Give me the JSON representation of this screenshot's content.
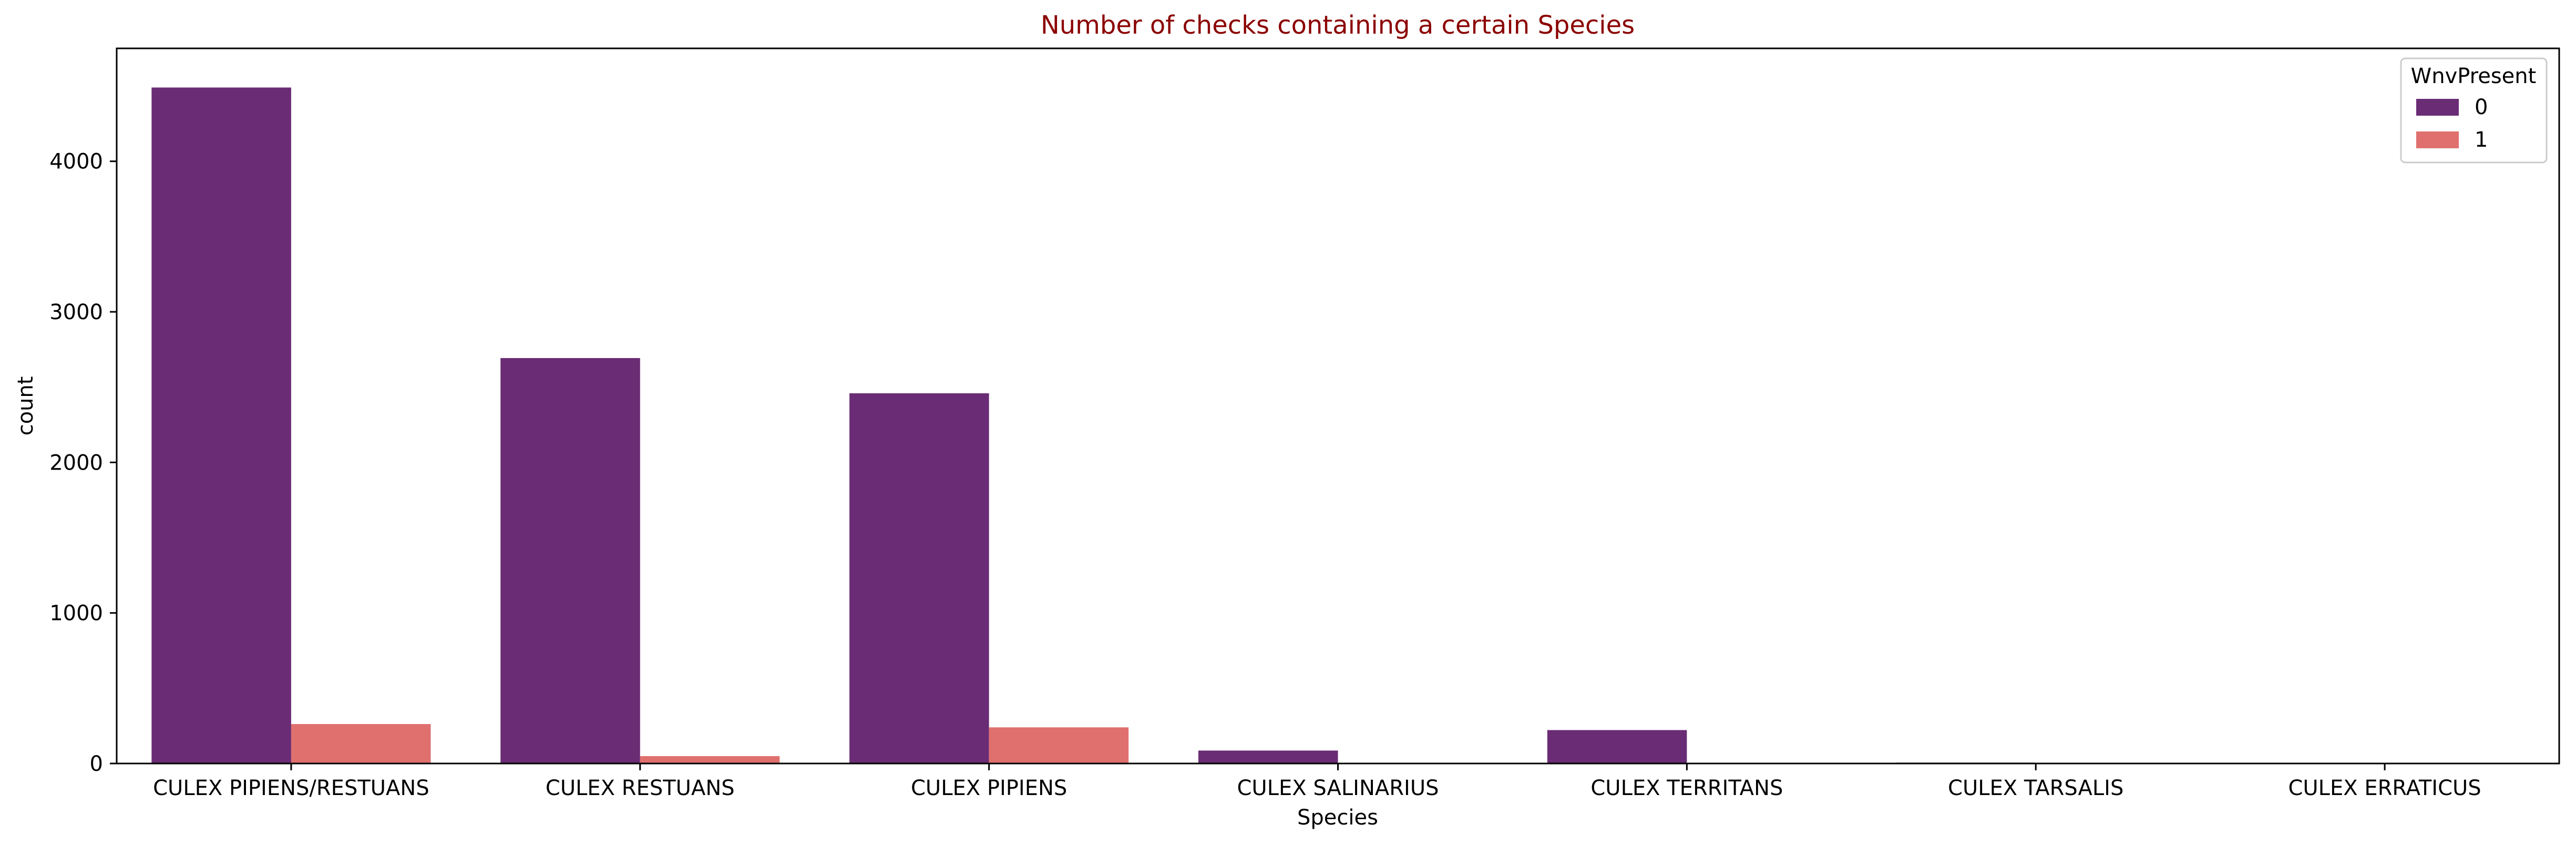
{
  "chart_data": {
    "type": "bar",
    "title": "Number of checks containing a certain Species",
    "title_color": "#8b0000",
    "xlabel": "Species",
    "ylabel": "count",
    "categories": [
      "CULEX PIPIENS/RESTUANS",
      "CULEX RESTUANS",
      "CULEX PIPIENS",
      "CULEX SALINARIUS",
      "CULEX TERRITANS",
      "CULEX TARSALIS",
      "CULEX ERRATICUS"
    ],
    "series": [
      {
        "name": "0",
        "color": "#6a2c75",
        "values": [
          4490,
          2693,
          2459,
          86,
          222,
          6,
          1
        ]
      },
      {
        "name": "1",
        "color": "#e0706e",
        "values": [
          262,
          49,
          240,
          0,
          0,
          0,
          0
        ]
      }
    ],
    "ylim": [
      0,
      4750
    ],
    "yticks": [
      0,
      1000,
      2000,
      3000,
      4000
    ],
    "legend": {
      "title": "WnvPresent",
      "placement": "top-right"
    },
    "grid": false
  }
}
